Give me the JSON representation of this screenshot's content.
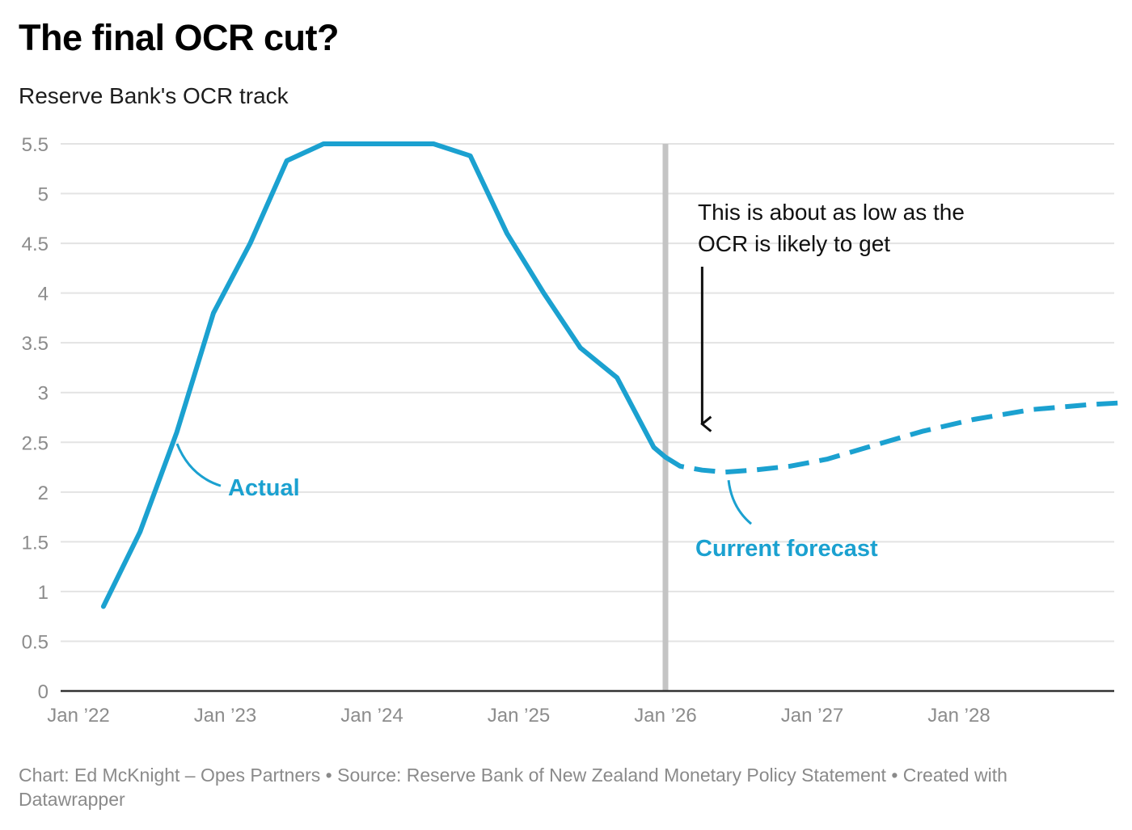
{
  "header": {
    "title": "The final OCR cut?",
    "subtitle": "Reserve Bank's OCR track"
  },
  "chart_data": {
    "type": "line",
    "title": "The final OCR cut?",
    "subtitle": "Reserve Bank's OCR track",
    "xlabel": "",
    "ylabel": "",
    "ylim": [
      0,
      5.5
    ],
    "xlim": [
      2022.0,
      2029.15
    ],
    "grid": true,
    "y_ticks": [
      "0",
      "0.5",
      "1",
      "1.5",
      "2",
      "2.5",
      "3",
      "3.5",
      "4",
      "4.5",
      "5",
      "5.5"
    ],
    "x_ticks": [
      {
        "x": 2022,
        "label": "Jan ’22"
      },
      {
        "x": 2023,
        "label": "Jan ’23"
      },
      {
        "x": 2024,
        "label": "Jan ’24"
      },
      {
        "x": 2025,
        "label": "Jan ’25"
      },
      {
        "x": 2026,
        "label": "Jan ’26"
      },
      {
        "x": 2027,
        "label": "Jan ’27"
      },
      {
        "x": 2028,
        "label": "Jan ’28"
      }
    ],
    "series": [
      {
        "name": "Actual",
        "style": "solid",
        "color": "#1ba1d0",
        "x": [
          2022.17,
          2022.42,
          2022.67,
          2022.92,
          2023.17,
          2023.42,
          2023.67,
          2023.92,
          2024.17,
          2024.42,
          2024.67,
          2024.92,
          2025.17,
          2025.42,
          2025.67,
          2025.92,
          2026.0
        ],
        "values": [
          0.85,
          1.6,
          2.6,
          3.8,
          4.5,
          5.33,
          5.5,
          5.5,
          5.5,
          5.5,
          5.38,
          4.6,
          4.0,
          3.45,
          3.15,
          2.45,
          2.35
        ]
      },
      {
        "name": "Current forecast",
        "style": "dashed",
        "color": "#1ba1d0",
        "x": [
          2026.0,
          2026.1,
          2026.25,
          2026.4,
          2026.6,
          2026.85,
          2027.1,
          2027.4,
          2027.75,
          2028.1,
          2028.5,
          2028.9,
          2029.15
        ],
        "values": [
          2.35,
          2.26,
          2.22,
          2.2,
          2.22,
          2.26,
          2.33,
          2.46,
          2.61,
          2.73,
          2.83,
          2.88,
          2.9
        ]
      }
    ],
    "vertical_marker": {
      "x": 2026.0,
      "color": "#c4c4c4"
    },
    "annotations": [
      {
        "text": "This is about as low as the",
        "text2": "OCR is likely to get",
        "arrow_x": 2026.25,
        "arrow_to_y": 2.7
      },
      {
        "text": "Actual",
        "color": "#1ba1d0",
        "target_x": 2022.65,
        "target_y": 2.55
      },
      {
        "text": "Current forecast",
        "color": "#1ba1d0",
        "target_x": 2026.43,
        "target_y": 2.2
      }
    ]
  },
  "footer": {
    "credit": "Chart: Ed McKnight – Opes Partners • Source: Reserve Bank of New Zealand Monetary Policy Statement • Created with Datawrapper"
  }
}
